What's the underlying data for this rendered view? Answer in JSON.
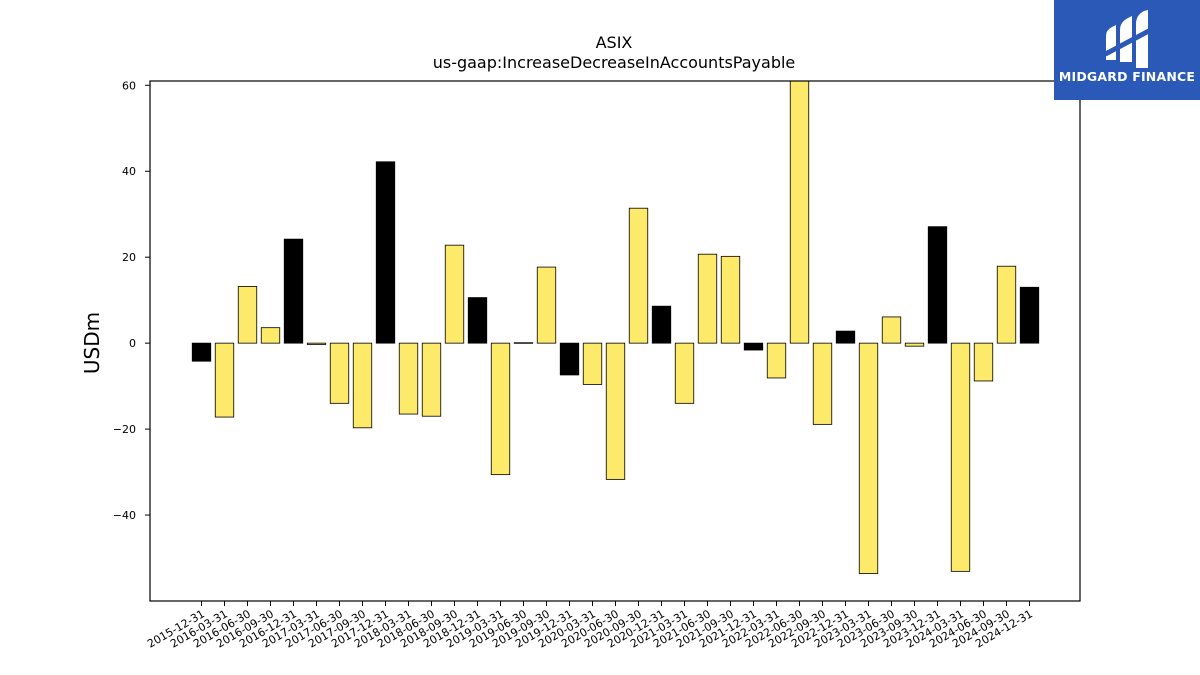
{
  "logo": {
    "text": "MIDGARD FINANCE",
    "icon": "midgard-logo-icon",
    "background": "#2b59b8"
  },
  "chart_data": {
    "type": "bar",
    "title": "ASIX",
    "subtitle": "us-gaap:IncreaseDecreaseInAccountsPayable",
    "xlabel": "",
    "ylabel": "USDm",
    "ylim": [
      -60,
      61
    ],
    "yticks": [
      60,
      40,
      20,
      0,
      -20,
      -40
    ],
    "grid": false,
    "colors": {
      "q4": "#000000",
      "other": "#fde96a",
      "edge": "#000000"
    },
    "categories": [
      "2015-12-31",
      "2016-03-31",
      "2016-06-30",
      "2016-09-30",
      "2016-12-31",
      "2017-03-31",
      "2017-06-30",
      "2017-09-30",
      "2017-12-31",
      "2018-03-31",
      "2018-06-30",
      "2018-09-30",
      "2018-12-31",
      "2019-03-31",
      "2019-06-30",
      "2019-09-30",
      "2019-12-31",
      "2020-03-31",
      "2020-06-30",
      "2020-09-30",
      "2020-12-31",
      "2021-03-31",
      "2021-06-30",
      "2021-09-30",
      "2021-12-31",
      "2022-03-31",
      "2022-06-30",
      "2022-09-30",
      "2022-12-31",
      "2023-03-31",
      "2023-06-30",
      "2023-09-30",
      "2023-12-31",
      "2024-03-31",
      "2024-06-30",
      "2024-09-30",
      "2024-12-31"
    ],
    "values": [
      -4.2,
      -17.2,
      13.2,
      3.6,
      24.2,
      -0.3,
      -14.0,
      -19.7,
      42.2,
      -16.5,
      -17.0,
      22.8,
      10.6,
      -30.6,
      0.1,
      17.7,
      -7.4,
      -9.6,
      -31.7,
      31.4,
      8.6,
      -14.0,
      20.7,
      20.2,
      -1.6,
      -8.1,
      61.0,
      -18.9,
      2.8,
      -53.6,
      6.1,
      -0.7,
      27.1,
      -53.1,
      -8.8,
      17.9,
      13.0
    ]
  }
}
